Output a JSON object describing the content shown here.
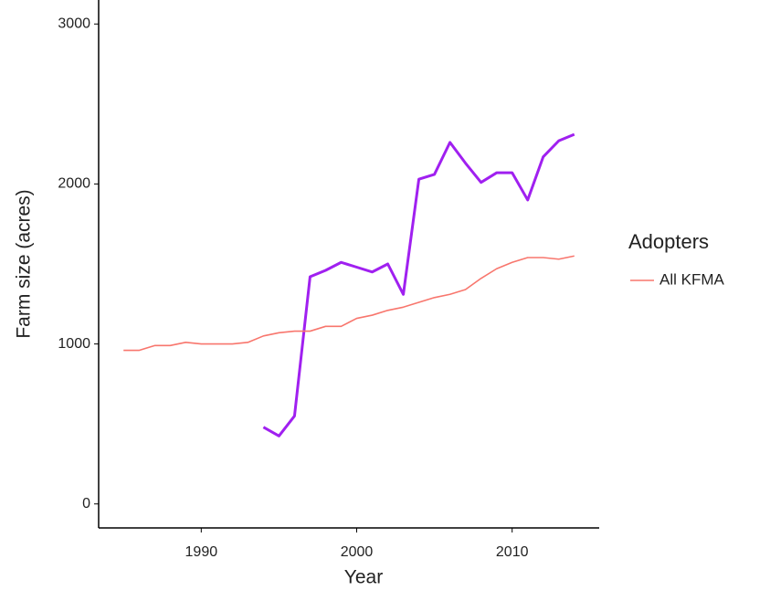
{
  "chart_data": {
    "type": "line",
    "x_label": "Year",
    "y_label": "Farm size (acres)",
    "x": [
      1985,
      1986,
      1987,
      1988,
      1989,
      1990,
      1991,
      1992,
      1993,
      1994,
      1995,
      1996,
      1997,
      1998,
      1999,
      2000,
      2001,
      2002,
      2003,
      2004,
      2005,
      2006,
      2007,
      2008,
      2009,
      2010,
      2011,
      2012,
      2013,
      2014
    ],
    "series": [
      {
        "color": "#a020f0",
        "values": [
          null,
          null,
          null,
          null,
          null,
          null,
          null,
          null,
          null,
          480,
          425,
          550,
          1420,
          1460,
          1510,
          1480,
          1450,
          1500,
          1310,
          2030,
          2060,
          2260,
          2130,
          2010,
          2070,
          2070,
          1900,
          2170,
          2270,
          2310
        ]
      },
      {
        "name": "All KFMA",
        "color": "#f8766d",
        "values": [
          960,
          960,
          990,
          990,
          1010,
          1000,
          1000,
          1000,
          1010,
          1050,
          1070,
          1080,
          1080,
          1110,
          1110,
          1160,
          1180,
          1210,
          1230,
          1260,
          1290,
          1310,
          1340,
          1410,
          1470,
          1510,
          1540,
          1540,
          1530,
          1550
        ]
      }
    ],
    "legend_title": "Adopters",
    "xlim": [
      1983.4,
      2015.6
    ],
    "xticks": [
      1990,
      2000,
      2010
    ],
    "ylim": [
      -150,
      3150
    ],
    "yticks": [
      0,
      1000,
      2000,
      3000
    ],
    "grid": false
  }
}
